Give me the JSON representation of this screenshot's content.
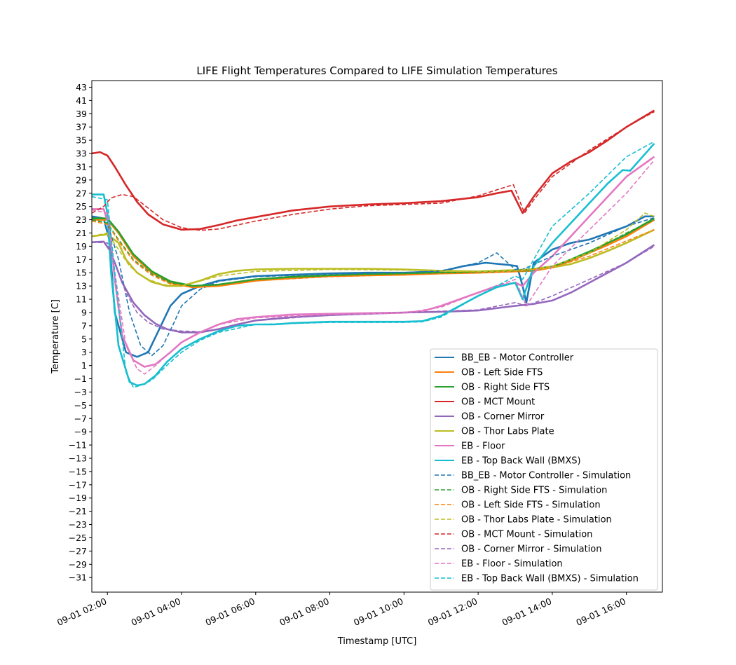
{
  "chart_data": {
    "type": "line",
    "title": "LIFE Flight Temperatures Compared to LIFE Simulation Temperatures",
    "xlabel": "Timestamp [UTC]",
    "ylabel": "Temperature [C]",
    "xlim": [
      1.58,
      16.97
    ],
    "ylim": [
      -33.2,
      44.0
    ],
    "x_ticks": [
      {
        "label": "09-01 02:00",
        "value": 2
      },
      {
        "label": "09-01 04:00",
        "value": 4
      },
      {
        "label": "09-01 06:00",
        "value": 6
      },
      {
        "label": "09-01 08:00",
        "value": 8
      },
      {
        "label": "09-01 10:00",
        "value": 10
      },
      {
        "label": "09-01 12:00",
        "value": 12
      },
      {
        "label": "09-01 14:00",
        "value": 14
      },
      {
        "label": "09-01 16:00",
        "value": 16
      }
    ],
    "y_ticks": [
      43,
      41,
      39,
      37,
      35,
      33,
      31,
      29,
      27,
      25,
      23,
      21,
      19,
      17,
      15,
      13,
      11,
      9,
      7,
      5,
      3,
      1,
      -1,
      -3,
      -5,
      -7,
      -9,
      -11,
      -13,
      -15,
      -17,
      -19,
      -21,
      -23,
      -25,
      -27,
      -29,
      -31
    ],
    "legend_position": "lower-right",
    "series": [
      {
        "name": "BB_EB - Motor Controller",
        "color": "#1f77b4",
        "style": "solid",
        "x": [
          1.58,
          1.9,
          2.05,
          2.2,
          2.5,
          2.8,
          3.1,
          3.4,
          3.7,
          4.0,
          4.5,
          5.0,
          6.0,
          7.0,
          8.0,
          9.0,
          10.0,
          11.0,
          11.6,
          12.2,
          12.8,
          13.05,
          13.2,
          13.3,
          13.5,
          14.0,
          14.5,
          15.0,
          15.5,
          16.0,
          16.5,
          16.75
        ],
        "y": [
          23.5,
          23.2,
          20.0,
          9.0,
          3.0,
          2.3,
          3.0,
          6.5,
          10.0,
          11.8,
          13.0,
          13.8,
          14.5,
          14.7,
          14.9,
          15.0,
          15.0,
          15.2,
          16.0,
          16.5,
          16.2,
          16.0,
          13.0,
          10.5,
          16.5,
          18.5,
          19.5,
          20.0,
          21.0,
          22.0,
          23.5,
          23.5
        ]
      },
      {
        "name": "OB - Left Side FTS",
        "color": "#ff7f0e",
        "style": "solid",
        "x": [
          1.58,
          2.0,
          2.3,
          2.7,
          3.2,
          3.7,
          4.3,
          5.0,
          6.0,
          7.0,
          8.0,
          9.0,
          10.0,
          11.0,
          12.0,
          13.0,
          13.5,
          14.0,
          14.5,
          15.0,
          15.5,
          16.0,
          16.75
        ],
        "y": [
          23.0,
          23.0,
          21.0,
          17.5,
          15.0,
          13.5,
          12.8,
          13.0,
          13.8,
          14.2,
          14.5,
          14.6,
          14.7,
          14.9,
          15.0,
          15.2,
          15.3,
          15.8,
          16.8,
          18.0,
          19.2,
          20.5,
          23.0
        ]
      },
      {
        "name": "OB - Right Side FTS",
        "color": "#2ca02c",
        "style": "solid",
        "x": [
          1.58,
          2.0,
          2.3,
          2.7,
          3.2,
          3.7,
          4.3,
          5.0,
          6.0,
          7.0,
          8.0,
          9.0,
          10.0,
          11.0,
          12.0,
          13.0,
          13.5,
          14.0,
          14.5,
          15.0,
          15.5,
          16.0,
          16.75
        ],
        "y": [
          23.2,
          23.2,
          21.2,
          17.8,
          15.2,
          13.7,
          13.0,
          13.2,
          14.0,
          14.4,
          14.6,
          14.8,
          14.9,
          15.0,
          15.1,
          15.3,
          15.4,
          15.9,
          17.0,
          18.2,
          19.5,
          20.8,
          23.2
        ]
      },
      {
        "name": "OB - MCT Mount",
        "color": "#d62728",
        "style": "solid",
        "x": [
          1.58,
          1.8,
          2.0,
          2.2,
          2.5,
          2.8,
          3.1,
          3.5,
          4.0,
          4.5,
          5.0,
          5.5,
          6.0,
          7.0,
          8.0,
          9.0,
          10.0,
          11.0,
          12.0,
          12.5,
          12.9,
          13.2,
          13.5,
          14.0,
          14.5,
          15.0,
          15.5,
          16.0,
          16.75
        ],
        "y": [
          33.0,
          33.2,
          32.7,
          31.0,
          28.2,
          25.7,
          23.8,
          22.3,
          21.5,
          21.6,
          22.2,
          22.9,
          23.4,
          24.4,
          25.0,
          25.3,
          25.5,
          25.8,
          26.4,
          27.0,
          27.4,
          24.0,
          26.5,
          30.0,
          31.8,
          33.2,
          35.0,
          37.0,
          39.5
        ]
      },
      {
        "name": "OB - Corner Mirror",
        "color": "#9467bd",
        "style": "solid",
        "x": [
          1.58,
          1.9,
          2.05,
          2.2,
          2.4,
          2.7,
          3.0,
          3.3,
          3.6,
          4.0,
          4.5,
          5.0,
          5.5,
          6.0,
          7.0,
          8.0,
          9.0,
          10.0,
          11.0,
          12.0,
          13.0,
          13.5,
          14.0,
          14.5,
          15.0,
          15.5,
          16.0,
          16.75
        ],
        "y": [
          19.6,
          19.7,
          18.5,
          16.5,
          13.5,
          10.5,
          8.6,
          7.3,
          6.5,
          6.0,
          6.0,
          6.5,
          7.2,
          7.8,
          8.3,
          8.6,
          8.8,
          9.0,
          9.1,
          9.3,
          10.0,
          10.3,
          10.8,
          12.0,
          13.5,
          15.0,
          16.5,
          19.2
        ]
      },
      {
        "name": "OB - Thor Labs Plate",
        "color": "#bcbd22",
        "style": "solid",
        "x": [
          1.58,
          2.0,
          2.3,
          2.5,
          2.8,
          3.2,
          3.6,
          4.0,
          4.5,
          5.0,
          5.5,
          6.0,
          7.0,
          8.0,
          9.0,
          10.0,
          11.0,
          12.0,
          13.0,
          13.5,
          14.0,
          14.5,
          15.0,
          15.5,
          16.0,
          16.75
        ],
        "y": [
          20.5,
          20.8,
          19.5,
          17.0,
          15.0,
          13.6,
          13.0,
          13.0,
          13.8,
          14.8,
          15.3,
          15.5,
          15.6,
          15.6,
          15.6,
          15.5,
          15.3,
          15.2,
          15.4,
          15.5,
          15.8,
          16.3,
          17.2,
          18.3,
          19.5,
          21.5
        ]
      },
      {
        "name": "EB - Floor",
        "color": "#e377c2",
        "style": "solid",
        "x": [
          1.58,
          1.9,
          2.05,
          2.2,
          2.4,
          2.7,
          3.0,
          3.3,
          3.7,
          4.0,
          4.5,
          5.0,
          5.5,
          6.0,
          7.0,
          8.0,
          9.0,
          10.0,
          10.5,
          11.0,
          11.5,
          12.0,
          12.5,
          13.0,
          13.2,
          13.5,
          14.0,
          14.5,
          15.0,
          15.5,
          16.0,
          16.75
        ],
        "y": [
          24.6,
          24.6,
          22.0,
          14.0,
          5.5,
          1.8,
          0.8,
          1.2,
          3.0,
          4.5,
          6.0,
          7.2,
          8.0,
          8.3,
          8.7,
          8.8,
          8.9,
          9.0,
          9.2,
          10.0,
          11.0,
          12.0,
          13.0,
          13.5,
          13.0,
          15.0,
          17.5,
          20.5,
          23.5,
          26.5,
          29.5,
          32.5
        ]
      },
      {
        "name": "EB - Top Back Wall (BMXS)",
        "color": "#17becf",
        "style": "solid",
        "x": [
          1.58,
          1.9,
          2.0,
          2.1,
          2.3,
          2.6,
          2.8,
          3.0,
          3.3,
          3.6,
          4.0,
          4.5,
          5.0,
          5.5,
          6.0,
          6.5,
          7.0,
          8.0,
          9.0,
          10.0,
          10.5,
          11.0,
          11.5,
          12.0,
          12.5,
          13.0,
          13.2,
          13.5,
          14.0,
          14.5,
          15.0,
          15.5,
          15.9,
          16.1,
          16.75
        ],
        "y": [
          26.8,
          26.8,
          24.0,
          15.0,
          4.0,
          -1.5,
          -2.0,
          -1.8,
          -0.5,
          1.5,
          3.5,
          5.0,
          6.2,
          7.0,
          7.2,
          7.2,
          7.4,
          7.6,
          7.6,
          7.6,
          7.7,
          8.5,
          10.0,
          11.5,
          12.8,
          13.5,
          11.0,
          16.0,
          19.5,
          22.5,
          25.5,
          28.5,
          30.5,
          30.4,
          34.5
        ]
      },
      {
        "name": "BB_EB - Motor Controller - Simulation",
        "color": "#1f77b4",
        "style": "dashed",
        "x": [
          1.58,
          2.0,
          2.3,
          2.6,
          2.9,
          3.2,
          3.5,
          3.8,
          4.0,
          4.5,
          5.0,
          6.0,
          8.0,
          10.0,
          11.0,
          12.0,
          12.5,
          13.0,
          13.2,
          14.0,
          15.0,
          16.0,
          16.75
        ],
        "y": [
          23.0,
          22.5,
          17.0,
          9.0,
          4.0,
          2.5,
          4.0,
          7.5,
          10.0,
          12.5,
          13.7,
          14.4,
          14.8,
          15.0,
          15.3,
          16.5,
          18.0,
          15.5,
          15.5,
          17.5,
          19.5,
          22.0,
          23.3
        ]
      },
      {
        "name": "OB - Right Side FTS - Simulation",
        "color": "#2ca02c",
        "style": "dashed",
        "x": [
          1.58,
          2.0,
          2.3,
          2.7,
          3.2,
          3.7,
          4.3,
          5.0,
          6.0,
          8.0,
          10.0,
          12.0,
          13.0,
          14.0,
          15.0,
          16.0,
          16.75
        ],
        "y": [
          23.0,
          22.5,
          20.0,
          17.0,
          14.8,
          13.5,
          13.0,
          13.2,
          14.0,
          14.6,
          14.9,
          15.1,
          15.3,
          16.0,
          18.0,
          21.0,
          23.0
        ]
      },
      {
        "name": "OB - Left Side FTS - Simulation",
        "color": "#ff7f0e",
        "style": "dashed",
        "x": [
          1.58,
          2.0,
          2.3,
          2.7,
          3.2,
          3.7,
          4.3,
          5.0,
          6.0,
          8.0,
          10.0,
          12.0,
          13.0,
          14.0,
          15.0,
          16.0,
          16.75
        ],
        "y": [
          22.8,
          22.3,
          19.8,
          16.8,
          14.6,
          13.3,
          12.8,
          13.0,
          13.8,
          14.4,
          14.7,
          15.0,
          15.2,
          15.8,
          17.5,
          19.8,
          21.5
        ]
      },
      {
        "name": "OB - Thor Labs Plate - Simulation",
        "color": "#bcbd22",
        "style": "dashed",
        "x": [
          1.58,
          2.0,
          2.3,
          2.6,
          3.0,
          3.5,
          4.0,
          5.0,
          6.0,
          8.0,
          10.0,
          12.0,
          13.0,
          14.0,
          15.0,
          16.0,
          16.5,
          16.75
        ],
        "y": [
          20.5,
          21.0,
          18.5,
          16.0,
          14.2,
          13.2,
          13.0,
          14.5,
          15.2,
          15.5,
          15.4,
          15.2,
          15.3,
          16.0,
          18.0,
          21.5,
          24.0,
          23.5
        ]
      },
      {
        "name": "OB - MCT Mount - Simulation",
        "color": "#d62728",
        "style": "dashed",
        "x": [
          1.58,
          1.9,
          2.1,
          2.4,
          2.7,
          3.0,
          3.5,
          4.0,
          4.5,
          5.0,
          6.0,
          7.0,
          8.0,
          9.0,
          10.0,
          11.0,
          12.0,
          12.5,
          12.95,
          13.25,
          13.5,
          14.0,
          15.0,
          16.0,
          16.75
        ],
        "y": [
          24.0,
          25.0,
          26.3,
          26.8,
          26.5,
          25.2,
          23.0,
          21.8,
          21.4,
          21.6,
          22.8,
          23.8,
          24.6,
          25.1,
          25.3,
          25.5,
          26.6,
          27.5,
          28.3,
          24.0,
          26.0,
          29.5,
          33.5,
          37.0,
          39.3
        ]
      },
      {
        "name": "OB - Corner Mirror - Simulation",
        "color": "#9467bd",
        "style": "dashed",
        "x": [
          1.58,
          2.0,
          2.2,
          2.5,
          2.8,
          3.1,
          3.5,
          4.0,
          4.5,
          5.0,
          6.0,
          8.0,
          10.0,
          12.0,
          13.0,
          13.3,
          14.0,
          15.0,
          16.0,
          16.75
        ],
        "y": [
          19.6,
          19.5,
          16.5,
          12.0,
          9.0,
          7.5,
          6.5,
          6.2,
          6.1,
          6.5,
          7.8,
          8.6,
          9.0,
          9.4,
          10.5,
          10.0,
          11.5,
          14.0,
          16.5,
          19.0
        ]
      },
      {
        "name": "EB - Floor - Simulation",
        "color": "#e377c2",
        "style": "dashed",
        "x": [
          1.58,
          2.0,
          2.2,
          2.5,
          2.8,
          3.0,
          3.3,
          3.7,
          4.0,
          4.5,
          5.0,
          6.0,
          8.0,
          10.0,
          11.0,
          12.0,
          13.0,
          13.3,
          14.0,
          15.0,
          16.0,
          16.75
        ],
        "y": [
          24.5,
          24.0,
          15.0,
          4.0,
          0.5,
          -0.3,
          1.0,
          3.0,
          4.5,
          6.0,
          7.2,
          8.2,
          8.7,
          8.9,
          9.8,
          12.0,
          14.0,
          10.0,
          16.0,
          21.5,
          27.0,
          32.0
        ]
      },
      {
        "name": "EB - Top Back Wall (BMXS) - Simulation",
        "color": "#17becf",
        "style": "dashed",
        "x": [
          1.58,
          2.0,
          2.2,
          2.5,
          2.7,
          2.9,
          3.2,
          3.6,
          4.0,
          4.5,
          5.0,
          6.0,
          8.0,
          10.0,
          10.5,
          11.0,
          12.0,
          13.0,
          13.2,
          14.0,
          15.0,
          16.0,
          16.75
        ],
        "y": [
          26.5,
          26.0,
          15.0,
          0.0,
          -2.3,
          -2.0,
          -1.2,
          1.0,
          3.0,
          4.8,
          6.0,
          7.2,
          7.5,
          7.5,
          7.6,
          8.3,
          11.5,
          14.5,
          14.0,
          22.0,
          27.0,
          32.5,
          34.8
        ]
      }
    ]
  }
}
